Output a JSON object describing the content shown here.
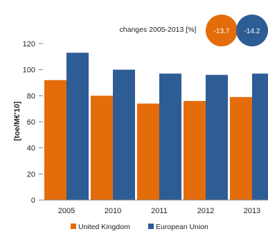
{
  "chart_data": {
    "type": "bar",
    "title": "changes 2005-2013 [%]",
    "ylabel": "[toe/M€'10]",
    "xlabel": "",
    "categories": [
      "2005",
      "2010",
      "2011",
      "2012",
      "2013"
    ],
    "ylim": [
      0,
      120
    ],
    "yticks": [
      0,
      20,
      40,
      60,
      80,
      100,
      120
    ],
    "grid": false,
    "legend_position": "bottom",
    "series": [
      {
        "name": "United Kingdom",
        "color": "#E46C0A",
        "values": [
          92,
          80,
          74,
          76,
          79
        ],
        "change": "-13.7"
      },
      {
        "name": "European Union",
        "color": "#2E5C95",
        "values": [
          113,
          100,
          97,
          96,
          97
        ],
        "change": "-14.2"
      }
    ]
  }
}
